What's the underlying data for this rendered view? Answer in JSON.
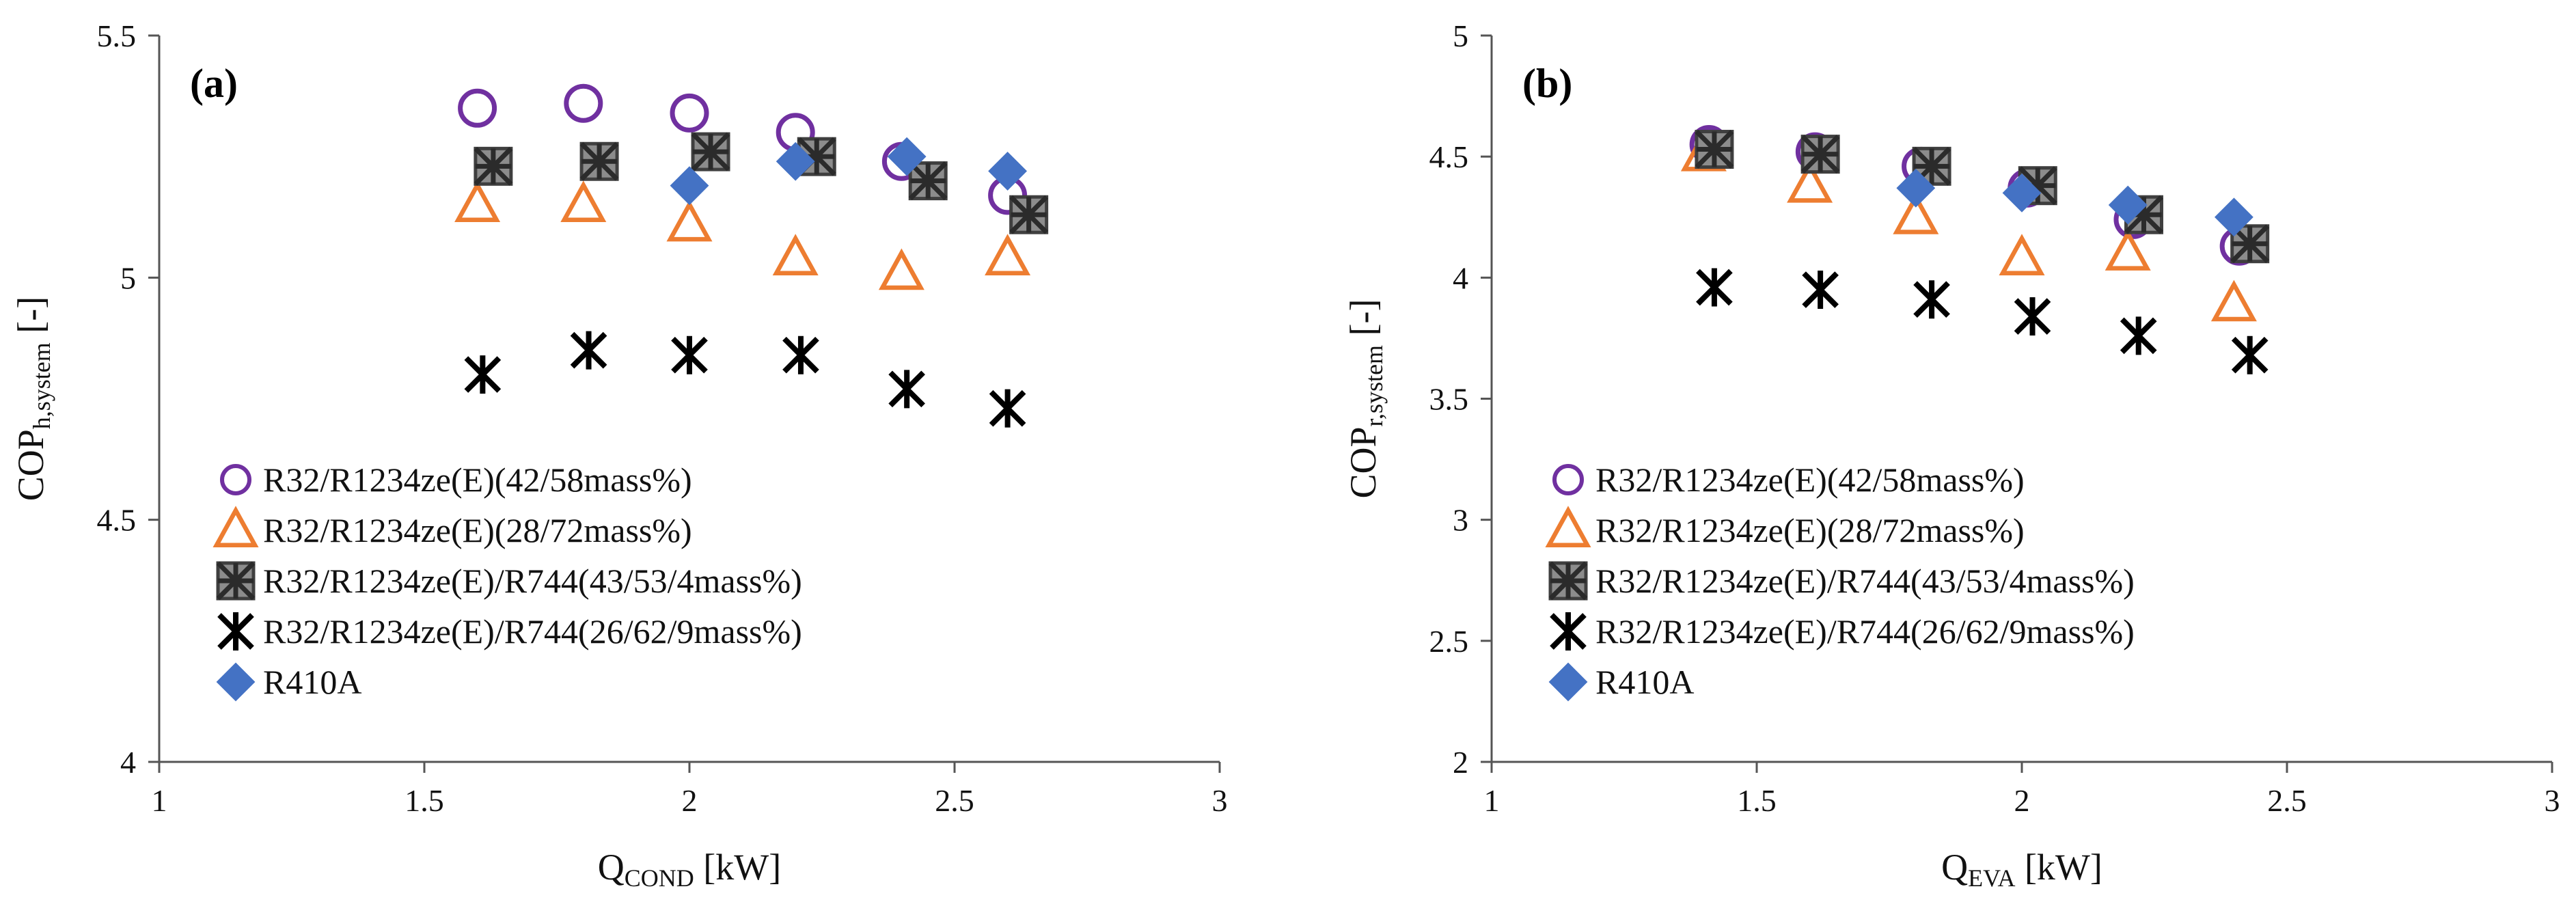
{
  "chart_data": [
    {
      "type": "scatter",
      "panel_label": "(a)",
      "xlabel": {
        "main": "Q",
        "sub": "COND",
        "tail": " [kW]"
      },
      "ylabel": {
        "main": "COP",
        "sub": "h,system",
        "tail": " [-]"
      },
      "xlim": [
        1,
        3
      ],
      "ylim": [
        4,
        5.5
      ],
      "xticks": [
        "1",
        "1.5",
        "2",
        "2.5",
        "3"
      ],
      "yticks": [
        "4",
        "4.5",
        "5",
        "5.5"
      ],
      "legend_position": "bottom-left",
      "grid": false,
      "series": [
        {
          "name": "R32/R1234ze(E)(42/58mass%)",
          "marker": "circle",
          "color": "#7030A0",
          "x": [
            1.6,
            1.8,
            2.0,
            2.2,
            2.4,
            2.6
          ],
          "y": [
            5.35,
            5.36,
            5.34,
            5.3,
            5.24,
            5.17
          ]
        },
        {
          "name": "R32/R1234ze(E)(28/72mass%)",
          "marker": "triangle",
          "color": "#ED7D31",
          "x": [
            1.6,
            1.8,
            2.0,
            2.2,
            2.4,
            2.6
          ],
          "y": [
            5.15,
            5.15,
            5.11,
            5.04,
            5.01,
            5.04
          ]
        },
        {
          "name": "R32/R1234ze(E)/R744(43/53/4mass%)",
          "marker": "square-x",
          "color": "#7F7F7F",
          "x": [
            1.63,
            1.83,
            2.04,
            2.24,
            2.45,
            2.64
          ],
          "y": [
            5.23,
            5.24,
            5.26,
            5.25,
            5.2,
            5.13
          ]
        },
        {
          "name": "R32/R1234ze(E)/R744(26/62/9mass%)",
          "marker": "asterisk",
          "color": "#000000",
          "x": [
            1.61,
            1.81,
            2.0,
            2.21,
            2.41,
            2.6
          ],
          "y": [
            4.8,
            4.85,
            4.84,
            4.84,
            4.77,
            4.73
          ]
        },
        {
          "name": "R410A",
          "marker": "diamond",
          "color": "#4472C4",
          "x": [
            2.0,
            2.2,
            2.41,
            2.6
          ],
          "y": [
            5.19,
            5.24,
            5.25,
            5.22
          ]
        }
      ]
    },
    {
      "type": "scatter",
      "panel_label": "(b)",
      "xlabel": {
        "main": "Q",
        "sub": "EVA",
        "tail": " [kW]"
      },
      "ylabel": {
        "main": "COP",
        "sub": "r,system",
        "tail": " [-]"
      },
      "xlim": [
        1,
        3
      ],
      "ylim": [
        2,
        5
      ],
      "xticks": [
        "1",
        "1.5",
        "2",
        "2.5",
        "3"
      ],
      "yticks": [
        "2",
        "2.5",
        "3",
        "3.5",
        "4",
        "4.5",
        "5"
      ],
      "legend_position": "bottom-left",
      "grid": false,
      "series": [
        {
          "name": "R32/R1234ze(E)(42/58mass%)",
          "marker": "circle",
          "color": "#7030A0",
          "x": [
            1.41,
            1.61,
            1.81,
            2.01,
            2.21,
            2.41
          ],
          "y": [
            4.55,
            4.52,
            4.46,
            4.37,
            4.24,
            4.13
          ]
        },
        {
          "name": "R32/R1234ze(E)(28/72mass%)",
          "marker": "triangle",
          "color": "#ED7D31",
          "x": [
            1.4,
            1.6,
            1.8,
            2.0,
            2.2,
            2.4
          ],
          "y": [
            4.51,
            4.38,
            4.25,
            4.08,
            4.1,
            3.89
          ]
        },
        {
          "name": "R32/R1234ze(E)/R744(43/53/4mass%)",
          "marker": "square-x",
          "color": "#7F7F7F",
          "x": [
            1.42,
            1.62,
            1.83,
            2.03,
            2.23,
            2.43
          ],
          "y": [
            4.53,
            4.51,
            4.46,
            4.38,
            4.26,
            4.14
          ]
        },
        {
          "name": "R32/R1234ze(E)/R744(26/62/9mass%)",
          "marker": "asterisk",
          "color": "#000000",
          "x": [
            1.42,
            1.62,
            1.83,
            2.02,
            2.22,
            2.43
          ],
          "y": [
            3.96,
            3.95,
            3.91,
            3.84,
            3.76,
            3.68
          ]
        },
        {
          "name": "R410A",
          "marker": "diamond",
          "color": "#4472C4",
          "x": [
            1.8,
            2.0,
            2.2,
            2.4
          ],
          "y": [
            4.37,
            4.35,
            4.3,
            4.25
          ]
        }
      ]
    }
  ]
}
